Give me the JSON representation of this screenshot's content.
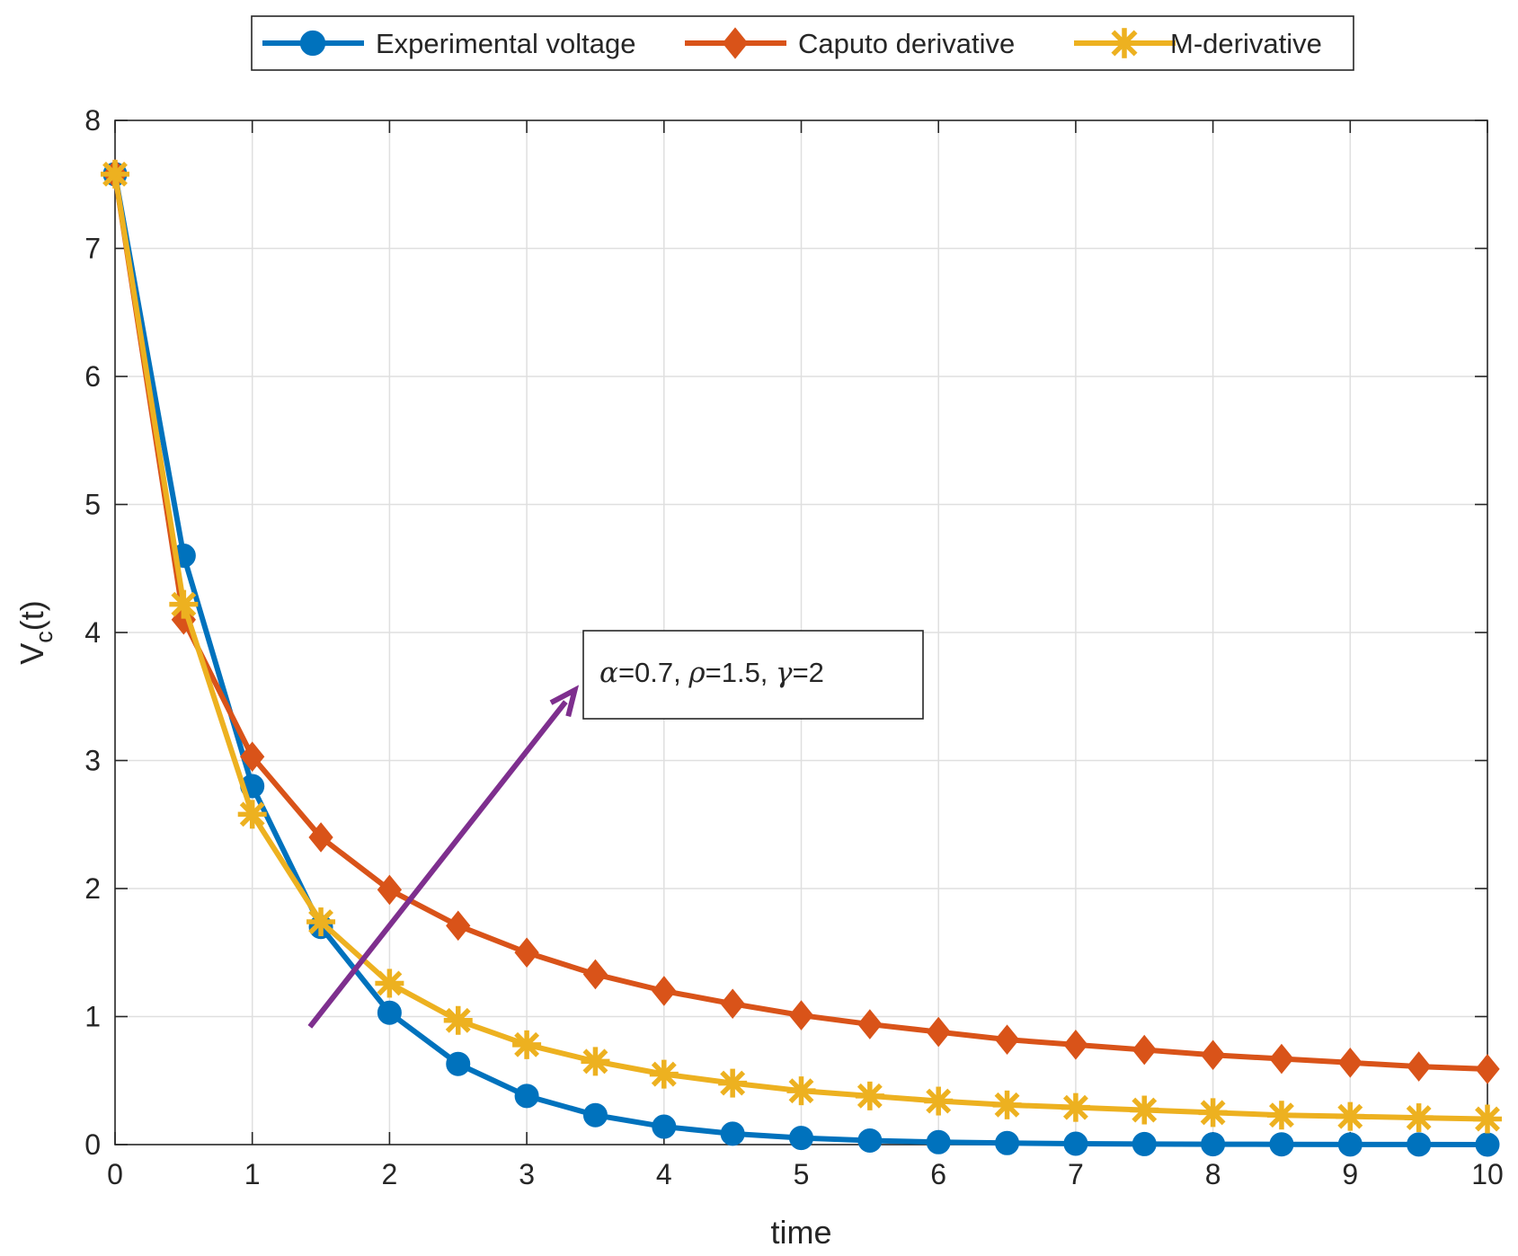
{
  "chart_data": {
    "type": "line",
    "title": "",
    "xlabel": "time",
    "ylabel_main": "V",
    "ylabel_sub": "c",
    "ylabel_tail": "(t)",
    "xlim": [
      0,
      10
    ],
    "ylim": [
      0,
      8
    ],
    "xticks": [
      0,
      1,
      2,
      3,
      4,
      5,
      6,
      7,
      8,
      9,
      10
    ],
    "yticks": [
      0,
      1,
      2,
      3,
      4,
      5,
      6,
      7,
      8
    ],
    "grid": true,
    "legend_position": "top-center outside",
    "x": [
      0,
      0.5,
      1,
      1.5,
      2,
      2.5,
      3,
      3.5,
      4,
      4.5,
      5,
      5.5,
      6,
      6.5,
      7,
      7.5,
      8,
      8.5,
      9,
      9.5,
      10
    ],
    "series": [
      {
        "name": "Experimental voltage",
        "color": "#0072BD",
        "marker": "circle",
        "values": [
          7.58,
          4.6,
          2.8,
          1.7,
          1.03,
          0.63,
          0.38,
          0.23,
          0.14,
          0.085,
          0.052,
          0.032,
          0.019,
          0.012,
          0.007,
          0.004,
          0.003,
          0.002,
          0.001,
          0.001,
          0.0
        ]
      },
      {
        "name": "Caputo derivative",
        "color": "#D95319",
        "marker": "diamond",
        "values": [
          7.58,
          4.1,
          3.03,
          2.4,
          1.99,
          1.71,
          1.5,
          1.33,
          1.2,
          1.1,
          1.01,
          0.94,
          0.88,
          0.82,
          0.78,
          0.74,
          0.7,
          0.67,
          0.64,
          0.61,
          0.59
        ]
      },
      {
        "name": "M-derivative",
        "color": "#EDB120",
        "marker": "asterisk",
        "values": [
          7.58,
          4.22,
          2.58,
          1.74,
          1.26,
          0.97,
          0.78,
          0.65,
          0.55,
          0.48,
          0.42,
          0.38,
          0.34,
          0.31,
          0.29,
          0.27,
          0.25,
          0.23,
          0.22,
          0.21,
          0.2
        ]
      }
    ],
    "annotation": {
      "parts": [
        {
          "text": "α",
          "greek": true
        },
        {
          "text": "=0.7, ",
          "greek": false
        },
        {
          "text": "ρ",
          "greek": true
        },
        {
          "text": "=1.5, ",
          "greek": false
        },
        {
          "text": "γ",
          "greek": true
        },
        {
          "text": "=2",
          "greek": false
        }
      ],
      "arrow_color": "#7E2F8E",
      "arrow_from": [
        1.42,
        0.92
      ],
      "arrow_to": [
        3.35,
        3.55
      ]
    }
  }
}
